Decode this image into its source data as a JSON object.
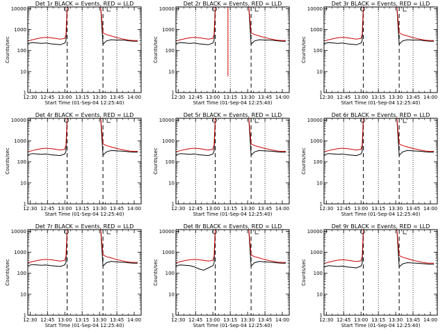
{
  "shared": {
    "ylabel": "Counts/sec",
    "xlabel": "Start Time (01-Sep-04 12:25:40)",
    "xticks": [
      "12:30",
      "12:45",
      "13:00",
      "13:15",
      "13:30",
      "13:45",
      "14:00"
    ],
    "yticks": [
      "1",
      "10",
      "100",
      "1000",
      "10000"
    ],
    "colors": {
      "events": "#000000",
      "lld": "#cc0000"
    }
  },
  "chart_data": [
    {
      "type": "line",
      "title": "Det 1r BLACK = Events, RED = LLD",
      "xlabel": "Start Time (01-Sep-04 12:25:40)",
      "ylabel": "Counts/sec",
      "yscale": "log",
      "ylim": [
        1,
        12000
      ],
      "xlim": [
        "12:28",
        "14:06"
      ],
      "vlines_dashed": [
        "13:02",
        "13:33"
      ],
      "vlines_dotted": [
        "12:45",
        "13:15",
        "13:45"
      ],
      "x": [
        "12:28",
        "12:32",
        "12:36",
        "12:40",
        "12:44",
        "12:48",
        "12:52",
        "12:56",
        "13:00",
        "13:01",
        "13:02",
        "13:31",
        "13:33",
        "13:36",
        "13:40",
        "13:44",
        "13:48",
        "13:52",
        "13:56",
        "14:00",
        "14:03"
      ],
      "series": [
        {
          "name": "Events",
          "values": [
            220,
            240,
            230,
            220,
            230,
            210,
            200,
            190,
            230,
            300,
            12000,
            12000,
            200,
            290,
            330,
            320,
            320,
            310,
            290,
            280,
            280
          ]
        },
        {
          "name": "LLD",
          "values": [
            290,
            330,
            370,
            410,
            430,
            410,
            380,
            350,
            380,
            600,
            12000,
            12000,
            700,
            580,
            500,
            430,
            380,
            340,
            310,
            300,
            300
          ]
        }
      ]
    },
    {
      "type": "line",
      "title": "Det 2r BLACK = Events, RED = LLD",
      "xlabel": "Start Time (01-Sep-04 12:25:40)",
      "ylabel": "Counts/sec",
      "yscale": "log",
      "ylim": [
        1,
        12000
      ],
      "xlim": [
        "12:28",
        "14:06"
      ],
      "vlines_dashed": [
        "13:02",
        "13:33"
      ],
      "vlines_dotted": [
        "12:45",
        "13:15",
        "13:45"
      ],
      "x": [
        "12:28",
        "12:32",
        "12:36",
        "12:40",
        "12:44",
        "12:48",
        "12:52",
        "12:56",
        "13:00",
        "13:01",
        "13:02",
        "13:31",
        "13:33",
        "13:36",
        "13:40",
        "13:44",
        "13:48",
        "13:52",
        "13:56",
        "14:00",
        "14:03"
      ],
      "series": [
        {
          "name": "Events",
          "values": [
            220,
            240,
            230,
            220,
            230,
            210,
            200,
            190,
            230,
            300,
            12000,
            12000,
            200,
            290,
            330,
            320,
            320,
            310,
            290,
            280,
            280
          ]
        },
        {
          "name": "LLD",
          "values": [
            290,
            330,
            370,
            410,
            430,
            410,
            380,
            350,
            380,
            600,
            12000,
            12000,
            700,
            580,
            500,
            430,
            380,
            340,
            310,
            300,
            300
          ]
        }
      ],
      "lld_spike": {
        "x": "13:13",
        "min": 6
      }
    },
    {
      "type": "line",
      "title": "Det 3r BLACK = Events, RED = LLD",
      "xlabel": "Start Time (01-Sep-04 12:25:40)",
      "ylabel": "Counts/sec",
      "yscale": "log",
      "ylim": [
        1,
        12000
      ],
      "xlim": [
        "12:28",
        "14:06"
      ],
      "vlines_dashed": [
        "13:02",
        "13:33"
      ],
      "vlines_dotted": [
        "12:45",
        "13:15",
        "13:45"
      ],
      "x": [
        "12:28",
        "12:32",
        "12:36",
        "12:40",
        "12:44",
        "12:48",
        "12:52",
        "12:56",
        "13:00",
        "13:01",
        "13:02",
        "13:31",
        "13:33",
        "13:36",
        "13:40",
        "13:44",
        "13:48",
        "13:52",
        "13:56",
        "14:00",
        "14:03"
      ],
      "series": [
        {
          "name": "Events",
          "values": [
            220,
            240,
            230,
            220,
            230,
            210,
            200,
            190,
            230,
            300,
            12000,
            12000,
            200,
            290,
            330,
            320,
            320,
            310,
            290,
            280,
            280
          ]
        },
        {
          "name": "LLD",
          "values": [
            290,
            330,
            370,
            410,
            430,
            410,
            380,
            350,
            380,
            600,
            12000,
            12000,
            700,
            580,
            500,
            430,
            380,
            340,
            310,
            300,
            300
          ]
        }
      ]
    },
    {
      "type": "line",
      "title": "Det 4r BLACK = Events, RED = LLD",
      "xlabel": "Start Time (01-Sep-04 12:25:40)",
      "ylabel": "Counts/sec",
      "yscale": "log",
      "ylim": [
        1,
        12000
      ],
      "xlim": [
        "12:28",
        "14:06"
      ],
      "vlines_dashed": [
        "13:02",
        "13:33"
      ],
      "vlines_dotted": [
        "12:45",
        "13:15",
        "13:45"
      ],
      "x": [
        "12:28",
        "12:32",
        "12:36",
        "12:40",
        "12:44",
        "12:48",
        "12:52",
        "12:56",
        "13:00",
        "13:01",
        "13:02",
        "13:31",
        "13:33",
        "13:36",
        "13:40",
        "13:44",
        "13:48",
        "13:52",
        "13:56",
        "14:00",
        "14:03"
      ],
      "series": [
        {
          "name": "Events",
          "values": [
            220,
            250,
            240,
            230,
            240,
            220,
            210,
            200,
            240,
            320,
            12000,
            12000,
            210,
            300,
            350,
            340,
            330,
            320,
            300,
            290,
            290
          ]
        },
        {
          "name": "LLD",
          "values": [
            300,
            350,
            390,
            430,
            450,
            430,
            400,
            370,
            400,
            650,
            12000,
            12000,
            720,
            600,
            520,
            450,
            400,
            360,
            330,
            320,
            320
          ]
        }
      ]
    },
    {
      "type": "line",
      "title": "Det 5r BLACK = Events, RED = LLD",
      "xlabel": "Start Time (01-Sep-04 12:25:40)",
      "ylabel": "Counts/sec",
      "yscale": "log",
      "ylim": [
        1,
        12000
      ],
      "xlim": [
        "12:28",
        "14:06"
      ],
      "vlines_dashed": [
        "13:02",
        "13:33"
      ],
      "vlines_dotted": [
        "12:45",
        "13:15",
        "13:45"
      ],
      "x": [
        "12:28",
        "12:32",
        "12:36",
        "12:40",
        "12:44",
        "12:48",
        "12:52",
        "12:56",
        "13:00",
        "13:01",
        "13:02",
        "13:31",
        "13:33",
        "13:36",
        "13:40",
        "13:44",
        "13:48",
        "13:52",
        "13:56",
        "14:00",
        "14:03"
      ],
      "series": [
        {
          "name": "Events",
          "values": [
            220,
            250,
            240,
            230,
            240,
            220,
            210,
            200,
            240,
            320,
            12000,
            12000,
            210,
            300,
            350,
            340,
            330,
            320,
            300,
            290,
            290
          ]
        },
        {
          "name": "LLD",
          "values": [
            300,
            350,
            390,
            430,
            450,
            430,
            400,
            370,
            400,
            650,
            12000,
            12000,
            720,
            600,
            520,
            450,
            400,
            360,
            330,
            320,
            320
          ]
        }
      ]
    },
    {
      "type": "line",
      "title": "Det 6r BLACK = Events, RED = LLD",
      "xlabel": "Start Time (01-Sep-04 12:25:40)",
      "ylabel": "Counts/sec",
      "yscale": "log",
      "ylim": [
        1,
        12000
      ],
      "xlim": [
        "12:28",
        "14:06"
      ],
      "vlines_dashed": [
        "13:02",
        "13:33"
      ],
      "vlines_dotted": [
        "12:45",
        "13:15",
        "13:45"
      ],
      "x": [
        "12:28",
        "12:32",
        "12:36",
        "12:40",
        "12:44",
        "12:48",
        "12:52",
        "12:56",
        "13:00",
        "13:01",
        "13:02",
        "13:31",
        "13:33",
        "13:36",
        "13:40",
        "13:44",
        "13:48",
        "13:52",
        "13:56",
        "14:00",
        "14:03"
      ],
      "series": [
        {
          "name": "Events",
          "values": [
            220,
            250,
            240,
            230,
            240,
            220,
            210,
            200,
            240,
            320,
            12000,
            12000,
            210,
            300,
            350,
            340,
            330,
            320,
            300,
            290,
            290
          ]
        },
        {
          "name": "LLD",
          "values": [
            300,
            350,
            390,
            430,
            450,
            430,
            400,
            370,
            400,
            650,
            12000,
            12000,
            720,
            600,
            520,
            450,
            400,
            360,
            330,
            320,
            320
          ]
        }
      ]
    },
    {
      "type": "line",
      "title": "Det 7r BLACK = Events, RED = LLD",
      "xlabel": "Start Time (01-Sep-04 12:25:40)",
      "ylabel": "Counts/sec",
      "yscale": "log",
      "ylim": [
        1,
        12000
      ],
      "xlim": [
        "12:28",
        "14:06"
      ],
      "vlines_dashed": [
        "13:02",
        "13:33"
      ],
      "vlines_dotted": [
        "12:45",
        "13:15",
        "13:45"
      ],
      "x": [
        "12:28",
        "12:32",
        "12:36",
        "12:40",
        "12:44",
        "12:48",
        "12:52",
        "12:56",
        "13:00",
        "13:01",
        "13:02",
        "13:31",
        "13:33",
        "13:36",
        "13:40",
        "13:44",
        "13:48",
        "13:52",
        "13:56",
        "14:00",
        "14:03"
      ],
      "series": [
        {
          "name": "Events",
          "values": [
            230,
            260,
            250,
            240,
            250,
            230,
            220,
            210,
            250,
            330,
            12000,
            12000,
            220,
            320,
            370,
            350,
            340,
            330,
            310,
            300,
            300
          ]
        },
        {
          "name": "LLD",
          "values": [
            310,
            360,
            400,
            440,
            460,
            440,
            410,
            380,
            410,
            680,
            12000,
            12000,
            740,
            620,
            540,
            460,
            410,
            370,
            340,
            330,
            330
          ]
        }
      ]
    },
    {
      "type": "line",
      "title": "Det 8r BLACK = Events, RED = LLD",
      "xlabel": "Start Time (01-Sep-04 12:25:40)",
      "ylabel": "Counts/sec",
      "yscale": "log",
      "ylim": [
        1,
        12000
      ],
      "xlim": [
        "12:28",
        "14:06"
      ],
      "vlines_dashed": [
        "13:02",
        "13:33"
      ],
      "vlines_dotted": [
        "12:45",
        "13:15",
        "13:45"
      ],
      "x": [
        "12:28",
        "12:32",
        "12:36",
        "12:40",
        "12:44",
        "12:48",
        "12:52",
        "12:56",
        "13:00",
        "13:01",
        "13:02",
        "13:31",
        "13:33",
        "13:36",
        "13:40",
        "13:44",
        "13:48",
        "13:52",
        "13:56",
        "14:00",
        "14:03"
      ],
      "series": [
        {
          "name": "Events",
          "values": [
            230,
            250,
            240,
            230,
            200,
            160,
            140,
            180,
            230,
            300,
            12000,
            12000,
            220,
            320,
            370,
            350,
            340,
            330,
            310,
            300,
            300
          ]
        },
        {
          "name": "LLD",
          "values": [
            310,
            360,
            400,
            440,
            460,
            440,
            410,
            380,
            410,
            680,
            12000,
            12000,
            740,
            620,
            540,
            460,
            410,
            370,
            340,
            330,
            330
          ]
        }
      ]
    },
    {
      "type": "line",
      "title": "Det 9r BLACK = Events, RED = LLD",
      "xlabel": "Start Time (01-Sep-04 12:25:40)",
      "ylabel": "Counts/sec",
      "yscale": "log",
      "ylim": [
        1,
        12000
      ],
      "xlim": [
        "12:28",
        "14:06"
      ],
      "vlines_dashed": [
        "13:02",
        "13:33"
      ],
      "vlines_dotted": [
        "12:45",
        "13:15",
        "13:45"
      ],
      "x": [
        "12:28",
        "12:32",
        "12:36",
        "12:40",
        "12:44",
        "12:48",
        "12:52",
        "12:56",
        "13:00",
        "13:01",
        "13:02",
        "13:31",
        "13:33",
        "13:36",
        "13:40",
        "13:44",
        "13:48",
        "13:52",
        "13:56",
        "14:00",
        "14:03"
      ],
      "series": [
        {
          "name": "Events",
          "values": [
            200,
            230,
            220,
            210,
            220,
            200,
            190,
            180,
            220,
            290,
            12000,
            12000,
            200,
            280,
            320,
            310,
            300,
            290,
            280,
            270,
            270
          ]
        },
        {
          "name": "LLD",
          "values": [
            290,
            340,
            380,
            420,
            440,
            420,
            390,
            360,
            390,
            620,
            12000,
            12000,
            700,
            580,
            500,
            430,
            380,
            340,
            310,
            300,
            300
          ]
        }
      ]
    }
  ]
}
